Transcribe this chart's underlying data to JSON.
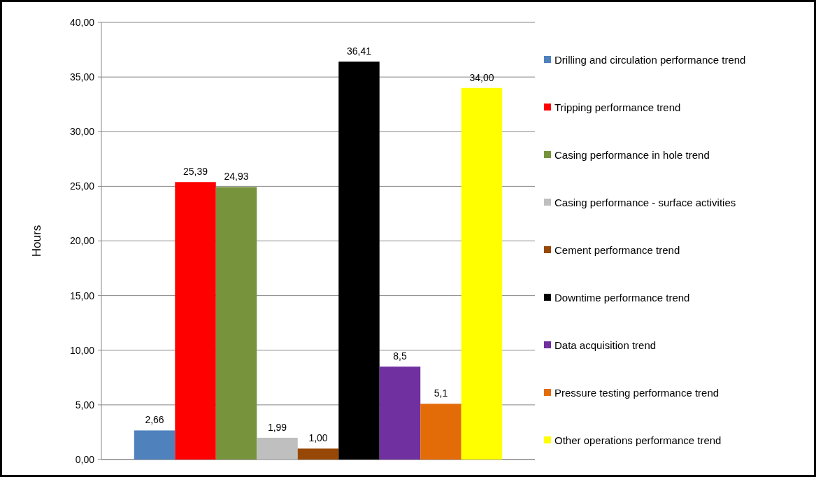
{
  "chart_data": {
    "type": "bar",
    "ylabel": "Hours",
    "categories": [
      null
    ],
    "series": [
      {
        "name": "Drilling and circulation performance trend",
        "color": "#4f81bd",
        "values": [
          2.66
        ],
        "value_labels": [
          "2,66"
        ]
      },
      {
        "name": "Tripping performance trend",
        "color": "#ff0000",
        "values": [
          25.39
        ],
        "value_labels": [
          "25,39"
        ]
      },
      {
        "name": "Casing performance in hole trend",
        "color": "#77933c",
        "values": [
          24.93
        ],
        "value_labels": [
          "24,93"
        ]
      },
      {
        "name": "Casing performance - surface activities",
        "color": "#bfbfbf",
        "values": [
          1.99
        ],
        "value_labels": [
          "1,99"
        ]
      },
      {
        "name": "Cement performance trend",
        "color": "#974706",
        "values": [
          1.0
        ],
        "value_labels": [
          "1,00"
        ]
      },
      {
        "name": "Downtime performance trend",
        "color": "#000000",
        "values": [
          36.41
        ],
        "value_labels": [
          "36,41"
        ]
      },
      {
        "name": "Data acquisition trend",
        "color": "#7030a0",
        "values": [
          8.5
        ],
        "value_labels": [
          "8,5"
        ]
      },
      {
        "name": "Pressure testing performance trend",
        "color": "#e36c09",
        "values": [
          5.1
        ],
        "value_labels": [
          "5,1"
        ]
      },
      {
        "name": "Other operations performance trend",
        "color": "#ffff00",
        "values": [
          34.0
        ],
        "value_labels": [
          "34,00"
        ]
      }
    ],
    "ylim": [
      0,
      40
    ],
    "yticks": [
      {
        "value": 0,
        "label": "0,00"
      },
      {
        "value": 5,
        "label": "5,00"
      },
      {
        "value": 10,
        "label": "10,00"
      },
      {
        "value": 15,
        "label": "15,00"
      },
      {
        "value": 20,
        "label": "20,00"
      },
      {
        "value": 25,
        "label": "25,00"
      },
      {
        "value": 30,
        "label": "30,00"
      },
      {
        "value": 35,
        "label": "35,00"
      },
      {
        "value": 40,
        "label": "40,00"
      }
    ],
    "grid": "y",
    "legend": "right"
  }
}
